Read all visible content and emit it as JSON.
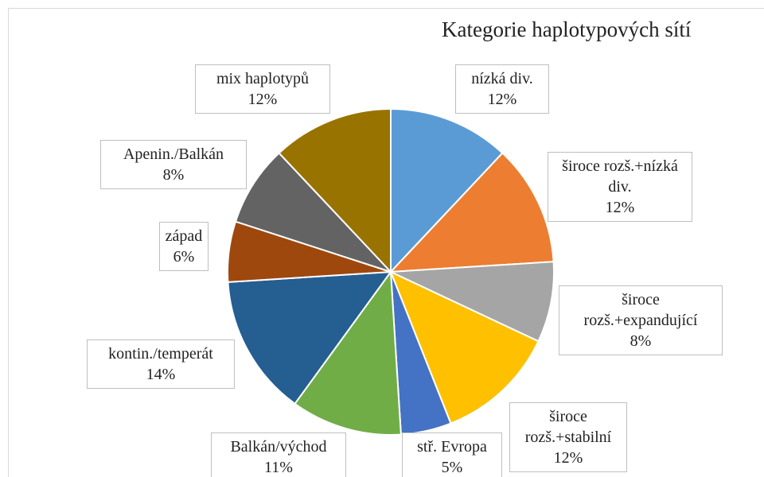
{
  "chart_data": {
    "type": "pie",
    "title": "Kategorie haplotypových sítí",
    "categories": [
      "nízká div.",
      "široce rozš.+nízká div.",
      "široce rozš.+expandující",
      "široce rozš.+stabilní",
      "stř. Evropa",
      "Balkán/východ",
      "kontin./temperát",
      "západ",
      "Apenin./Balkán",
      "mix haplotypů"
    ],
    "values": [
      12,
      12,
      8,
      12,
      5,
      11,
      14,
      6,
      8,
      12
    ],
    "value_labels": [
      "12%",
      "12%",
      "8%",
      "12%",
      "5%",
      "11%",
      "14%",
      "6%",
      "8%",
      "12%"
    ],
    "colors": [
      "#5b9bd5",
      "#ed7d31",
      "#a5a5a5",
      "#ffc000",
      "#4472c4",
      "#70ad47",
      "#255e91",
      "#9e480e",
      "#636363",
      "#997300"
    ]
  }
}
